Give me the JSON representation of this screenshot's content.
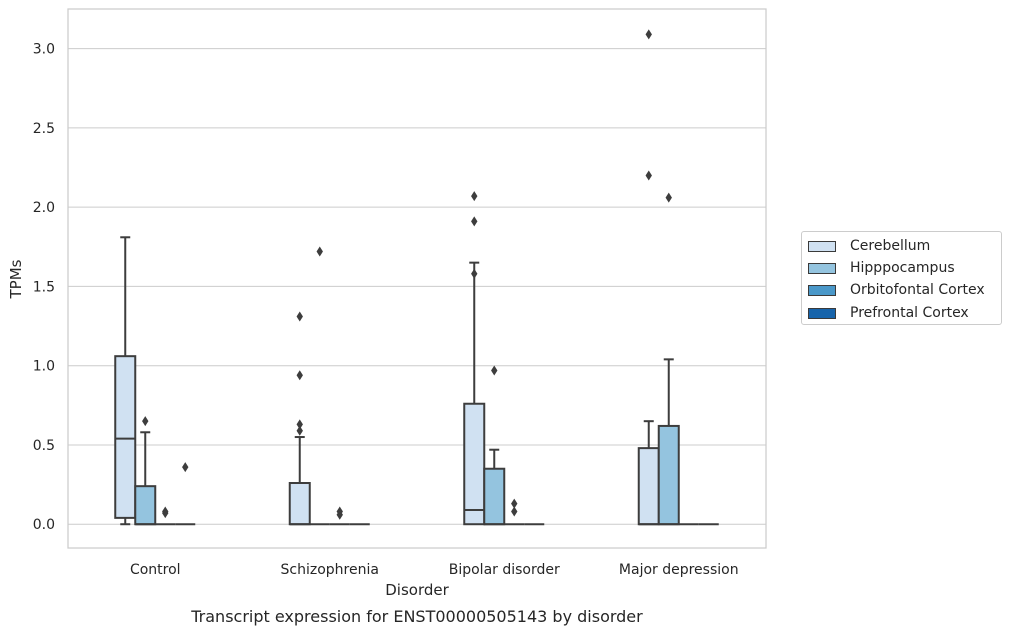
{
  "chart_data": {
    "type": "box",
    "title": "Transcript expression for ENST00000505143 by disorder",
    "xlabel": "Disorder",
    "ylabel": "TPMs",
    "ylim": [
      -0.15,
      3.25
    ],
    "yticks": [
      "0.0",
      "0.5",
      "1.0",
      "1.5",
      "2.0",
      "2.5",
      "3.0"
    ],
    "grid": "horizontal",
    "legend_position": "right",
    "categories": [
      "Control",
      "Schizophrenia",
      "Bipolar disorder",
      "Major depression"
    ],
    "series": [
      {
        "name": "Cerebellum",
        "color": "#d0e1f2",
        "boxes": [
          {
            "whislo": 0.0,
            "q1": 0.04,
            "med": 0.54,
            "q3": 1.06,
            "whishi": 1.81,
            "fliers": []
          },
          {
            "whislo": 0.0,
            "q1": 0.0,
            "med": 0.0,
            "q3": 0.26,
            "whishi": 0.55,
            "fliers": [
              0.94,
              1.31,
              0.63,
              0.59
            ]
          },
          {
            "whislo": 0.0,
            "q1": 0.0,
            "med": 0.09,
            "q3": 0.76,
            "whishi": 1.65,
            "fliers": [
              2.07,
              1.91,
              1.58
            ]
          },
          {
            "whislo": 0.0,
            "q1": 0.0,
            "med": 0.0,
            "q3": 0.48,
            "whishi": 0.65,
            "fliers": [
              3.09,
              2.2
            ]
          }
        ]
      },
      {
        "name": "Hipppocampus",
        "color": "#94c4df",
        "boxes": [
          {
            "whislo": 0.0,
            "q1": 0.0,
            "med": 0.0,
            "q3": 0.24,
            "whishi": 0.58,
            "fliers": [
              0.65
            ]
          },
          {
            "whislo": 0.0,
            "q1": 0.0,
            "med": 0.0,
            "q3": 0.0,
            "whishi": 0.0,
            "fliers": [
              1.72
            ]
          },
          {
            "whislo": 0.0,
            "q1": 0.0,
            "med": 0.0,
            "q3": 0.35,
            "whishi": 0.47,
            "fliers": [
              0.97
            ]
          },
          {
            "whislo": 0.0,
            "q1": 0.0,
            "med": 0.0,
            "q3": 0.62,
            "whishi": 1.04,
            "fliers": [
              2.06
            ]
          }
        ]
      },
      {
        "name": "Orbitofontal Cortex",
        "color": "#4a98c9",
        "boxes": [
          {
            "whislo": 0.0,
            "q1": 0.0,
            "med": 0.0,
            "q3": 0.0,
            "whishi": 0.0,
            "fliers": [
              0.08,
              0.07
            ]
          },
          {
            "whislo": 0.0,
            "q1": 0.0,
            "med": 0.0,
            "q3": 0.0,
            "whishi": 0.0,
            "fliers": [
              0.08,
              0.06
            ]
          },
          {
            "whislo": 0.0,
            "q1": 0.0,
            "med": 0.0,
            "q3": 0.0,
            "whishi": 0.0,
            "fliers": [
              0.13,
              0.08
            ]
          },
          {
            "whislo": 0.0,
            "q1": 0.0,
            "med": 0.0,
            "q3": 0.0,
            "whishi": 0.0,
            "fliers": []
          }
        ]
      },
      {
        "name": "Prefrontal Cortex",
        "color": "#1764ab",
        "boxes": [
          {
            "whislo": 0.0,
            "q1": 0.0,
            "med": 0.0,
            "q3": 0.0,
            "whishi": 0.0,
            "fliers": [
              0.36
            ]
          },
          {
            "whislo": 0.0,
            "q1": 0.0,
            "med": 0.0,
            "q3": 0.0,
            "whishi": 0.0,
            "fliers": []
          },
          {
            "whislo": 0.0,
            "q1": 0.0,
            "med": 0.0,
            "q3": 0.0,
            "whishi": 0.0,
            "fliers": []
          },
          {
            "whislo": 0.0,
            "q1": 0.0,
            "med": 0.0,
            "q3": 0.0,
            "whishi": 0.0,
            "fliers": []
          }
        ]
      }
    ]
  },
  "legend": {
    "items": [
      {
        "label": "Cerebellum",
        "color": "#d0e1f2"
      },
      {
        "label": "Hipppocampus",
        "color": "#94c4df"
      },
      {
        "label": "Orbitofontal Cortex",
        "color": "#4a98c9"
      },
      {
        "label": "Prefrontal Cortex",
        "color": "#1764ab"
      }
    ]
  }
}
